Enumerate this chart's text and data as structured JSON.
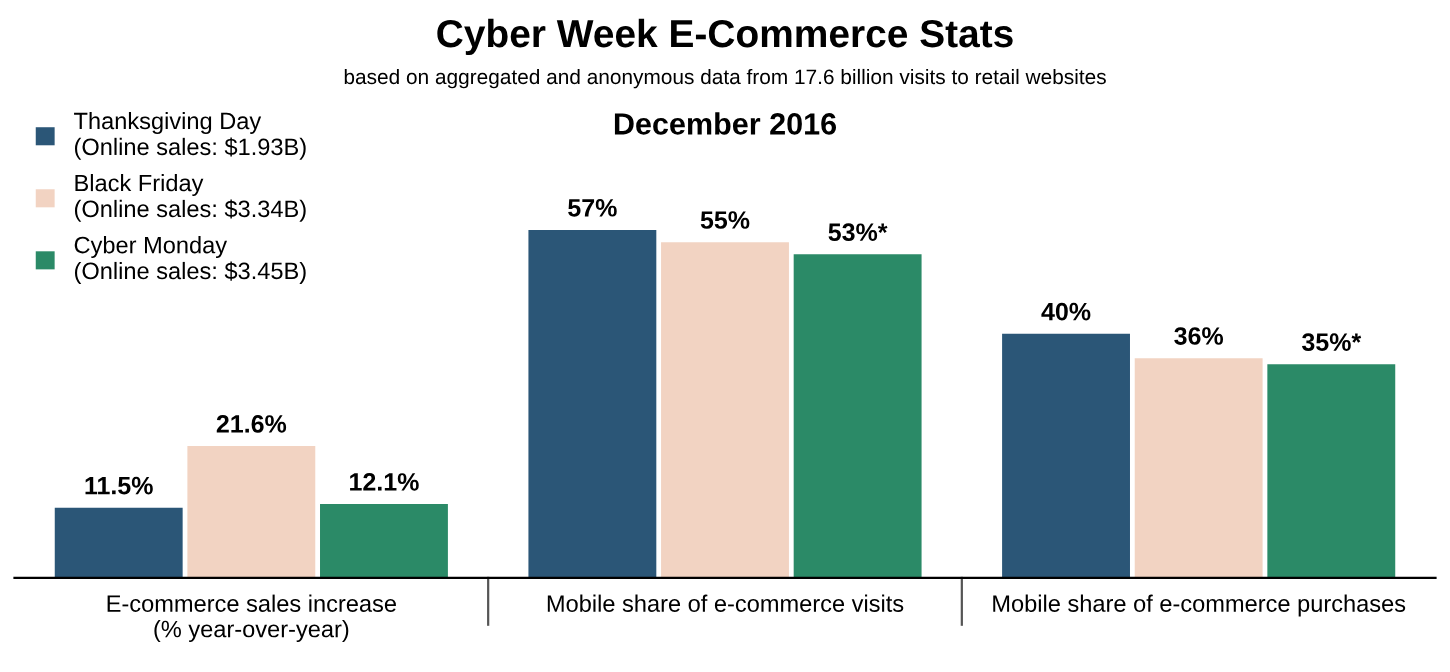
{
  "chart_data": {
    "type": "bar",
    "title": "Cyber Week E-Commerce Stats",
    "subtitle": "based on aggregated and anonymous data from 17.6 billion visits to retail websites",
    "annotations": [
      "December 2016"
    ],
    "categories": [
      "E-commerce sales increase\n(% year-over-year)",
      "Mobile share of e-commerce visits",
      "Mobile share of e-commerce purchases"
    ],
    "series": [
      {
        "name": "Thanksgiving Day\n(Online sales: $1.93B)",
        "color": "#2b5677",
        "values": [
          11.5,
          57,
          40
        ],
        "value_labels": [
          "11.5%",
          "57%",
          "40%"
        ]
      },
      {
        "name": "Black Friday\n(Online sales: $3.34B)",
        "color": "#f2d3c2",
        "values": [
          21.6,
          55,
          36
        ],
        "value_labels": [
          "21.6%",
          "55%",
          "36%"
        ]
      },
      {
        "name": "Cyber Monday\n(Online sales: $3.45B)",
        "color": "#2b8a67",
        "values": [
          12.1,
          53,
          35
        ],
        "value_labels": [
          "12.1%",
          "53%*",
          "35%*"
        ]
      }
    ],
    "legend": "top left",
    "grid": false
  }
}
